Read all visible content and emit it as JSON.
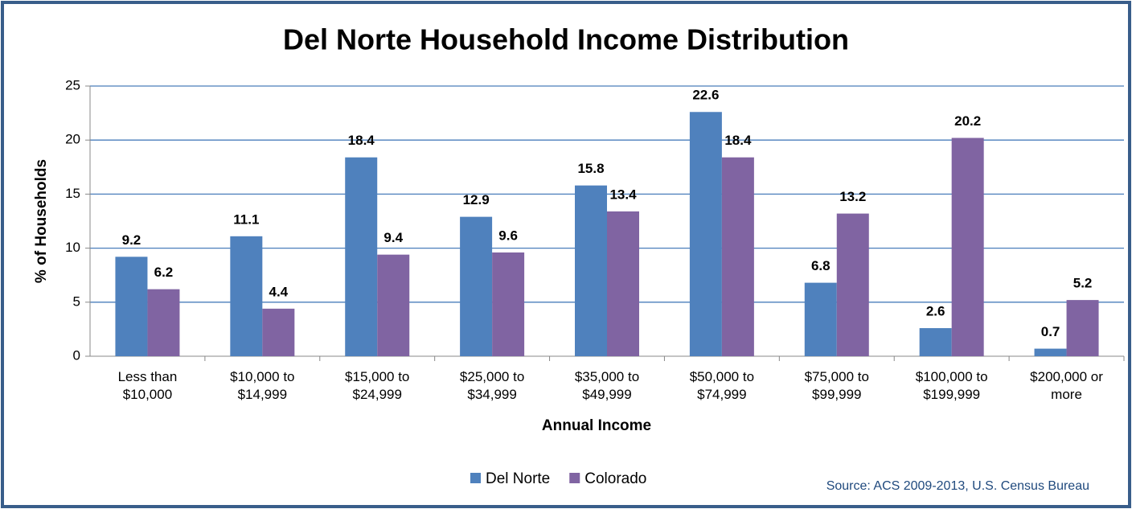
{
  "chart_data": {
    "type": "bar",
    "title": "Del Norte Household Income Distribution",
    "x_label": "Annual Income",
    "y_label": "% of Households",
    "source": "Source: ACS 2009-2013, U.S. Census Bureau",
    "categories": [
      "Less than\n$10,000",
      "$10,000 to\n$14,999",
      "$15,000 to\n$24,999",
      "$25,000 to\n$34,999",
      "$35,000 to\n$49,999",
      "$50,000 to\n$74,999",
      "$75,000 to\n$99,999",
      "$100,000 to\n$199,999",
      "$200,000 or\nmore"
    ],
    "series": [
      {
        "name": "Del Norte",
        "color": "#4f81bd",
        "values": [
          9.2,
          11.1,
          18.4,
          12.9,
          15.8,
          22.6,
          6.8,
          2.6,
          0.7
        ]
      },
      {
        "name": "Colorado",
        "color": "#8064a2",
        "values": [
          6.2,
          4.4,
          9.4,
          9.6,
          13.4,
          18.4,
          13.2,
          20.2,
          5.2
        ]
      }
    ],
    "ylim": [
      0,
      25
    ],
    "yticks": [
      0,
      5,
      10,
      15,
      20,
      25
    ],
    "grid": true,
    "legend": "bottom"
  }
}
